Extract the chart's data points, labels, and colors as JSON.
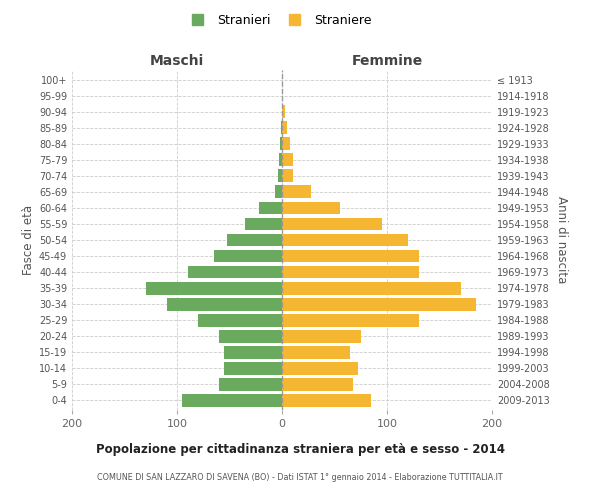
{
  "age_groups": [
    "0-4",
    "5-9",
    "10-14",
    "15-19",
    "20-24",
    "25-29",
    "30-34",
    "35-39",
    "40-44",
    "45-49",
    "50-54",
    "55-59",
    "60-64",
    "65-69",
    "70-74",
    "75-79",
    "80-84",
    "85-89",
    "90-94",
    "95-99",
    "100+"
  ],
  "birth_years": [
    "2009-2013",
    "2004-2008",
    "1999-2003",
    "1994-1998",
    "1989-1993",
    "1984-1988",
    "1979-1983",
    "1974-1978",
    "1969-1973",
    "1964-1968",
    "1959-1963",
    "1954-1958",
    "1949-1953",
    "1944-1948",
    "1939-1943",
    "1934-1938",
    "1929-1933",
    "1924-1928",
    "1919-1923",
    "1914-1918",
    "≤ 1913"
  ],
  "males": [
    95,
    60,
    55,
    55,
    60,
    80,
    110,
    130,
    90,
    65,
    52,
    35,
    22,
    7,
    4,
    3,
    2,
    1,
    0,
    0,
    0
  ],
  "females": [
    85,
    68,
    72,
    65,
    75,
    130,
    185,
    170,
    130,
    130,
    120,
    95,
    55,
    28,
    10,
    10,
    8,
    5,
    3,
    0,
    0
  ],
  "male_color": "#6aaa5f",
  "female_color": "#f5b731",
  "grid_color": "#cccccc",
  "title": "Popolazione per cittadinanza straniera per età e sesso - 2014",
  "subtitle": "COMUNE DI SAN LAZZARO DI SAVENA (BO) - Dati ISTAT 1° gennaio 2014 - Elaborazione TUTTITALIA.IT",
  "header_left": "Maschi",
  "header_right": "Femmine",
  "ylabel_left": "Fasce di età",
  "ylabel_right": "Anni di nascita",
  "legend_male": "Stranieri",
  "legend_female": "Straniere",
  "xlim": 200,
  "dpi": 100
}
